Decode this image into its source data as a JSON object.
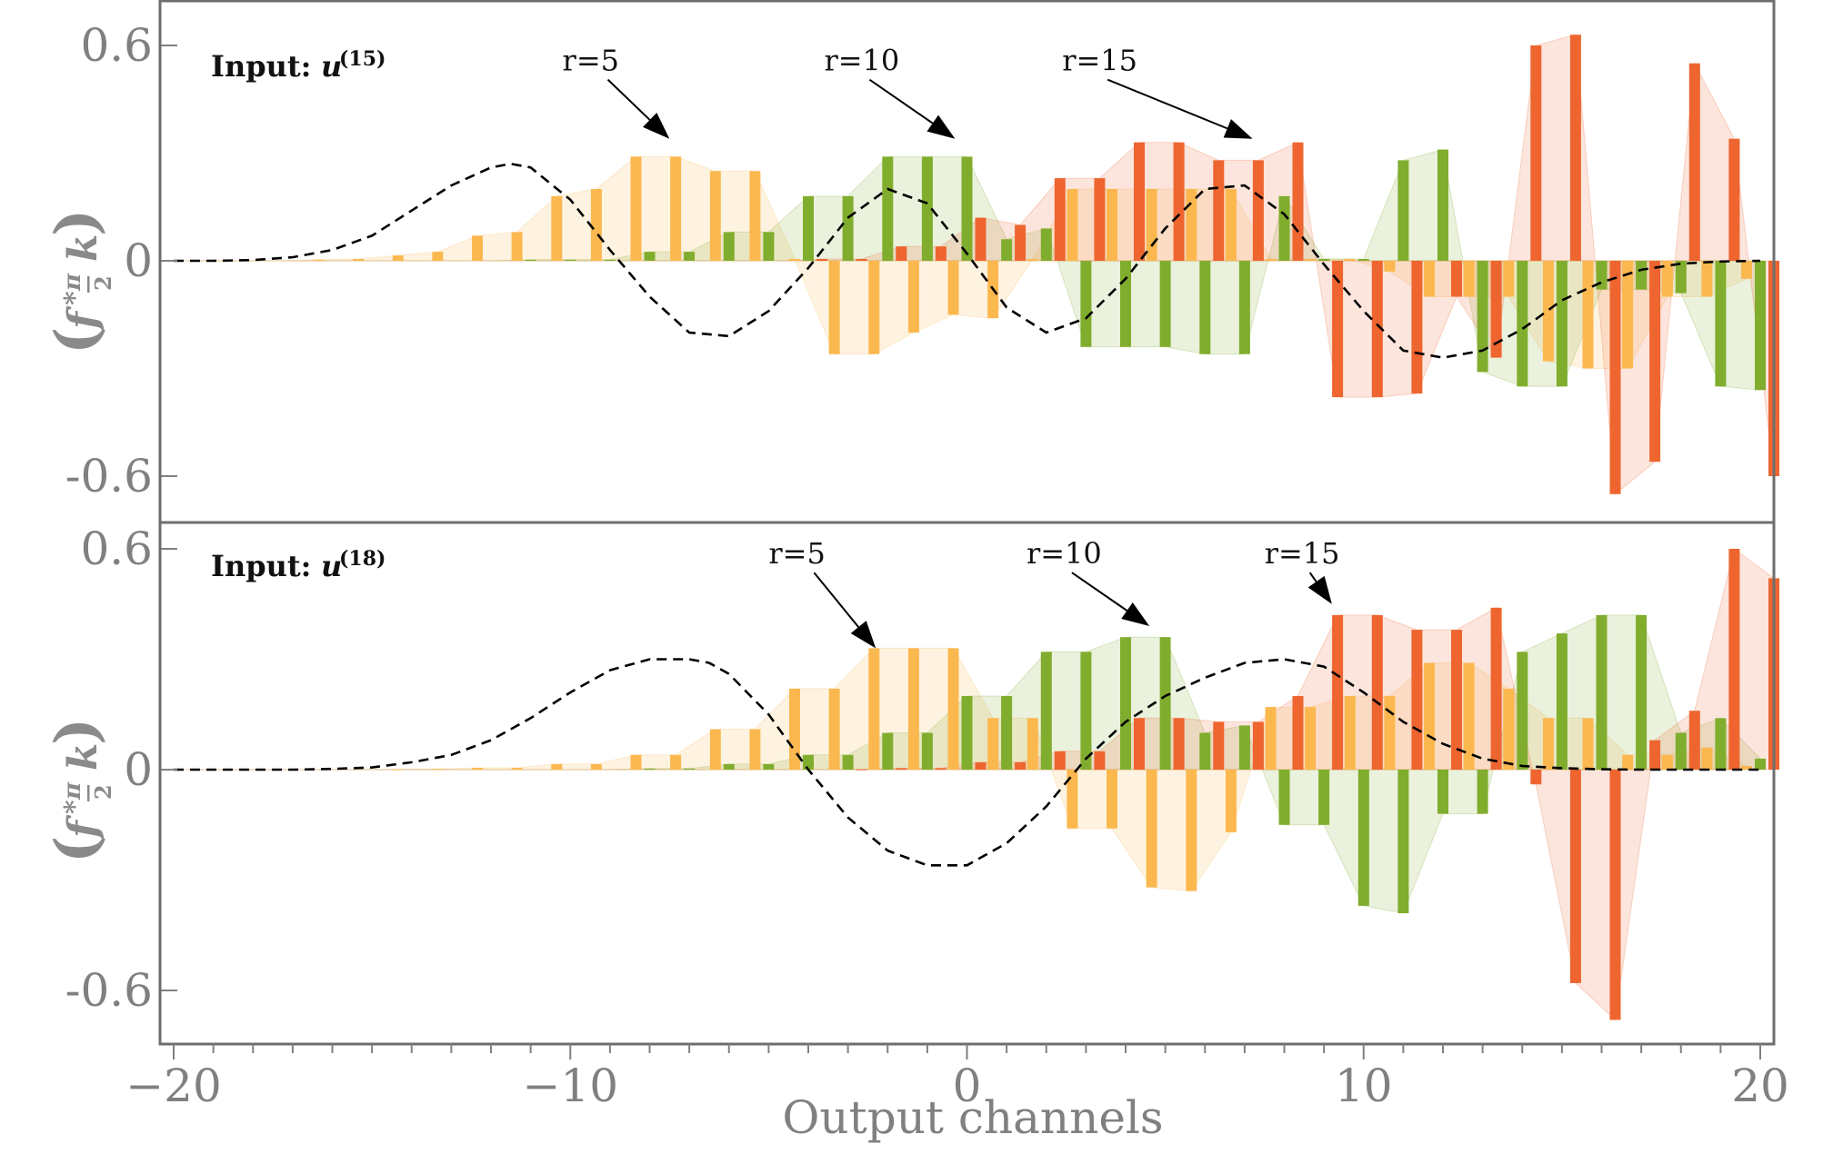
{
  "chart_data": {
    "type": "bar",
    "xlabel": "Output channels",
    "ylabel_parts": {
      "f": "f",
      "conv": "*",
      "pi": "π",
      "num": "",
      "den": "2",
      "k": "k"
    },
    "xlim": [
      -20.5,
      20.5
    ],
    "ylim": [
      -0.72,
      0.72
    ],
    "xticks": [
      -20,
      -10,
      0,
      10,
      20
    ],
    "xtick_labels": [
      "−20",
      "−10",
      "0",
      "10",
      "20"
    ],
    "yticks": [
      0.6,
      0,
      -0.6
    ],
    "ytick_labels": [
      "0.6",
      "0",
      "-0.6"
    ],
    "colors": {
      "r5": "#fbb84f",
      "r10": "#80ad2e",
      "r15": "#ee6530",
      "curve": "#000000",
      "frame": "#6e6e6e",
      "tick": "#808080"
    },
    "panels": [
      {
        "input_label": "Input:",
        "input_var": "u",
        "input_sup": "(15)",
        "annotations": [
          {
            "text": "r=5",
            "series": "r5",
            "arrow_x": -7.5,
            "arrow_y": 0.34
          },
          {
            "text": "r=10",
            "series": "r10",
            "arrow_x": -0.3,
            "arrow_y": 0.34
          },
          {
            "text": "r=15",
            "series": "r15",
            "arrow_x": 7.2,
            "arrow_y": 0.34
          }
        ],
        "series": [
          {
            "name": "r=5",
            "key": "r5",
            "x": [
              -20,
              -19,
              -18,
              -17,
              -16,
              -15,
              -14,
              -13,
              -12,
              -11,
              -10,
              -9,
              -8,
              -7,
              -6,
              -5,
              -4,
              -3,
              -2,
              -1,
              0,
              1,
              2,
              3,
              4,
              5,
              6,
              7,
              8,
              9,
              10,
              11,
              12,
              13,
              14,
              15,
              16,
              17,
              18,
              19,
              20
            ],
            "values": [
              0,
              0,
              0,
              0,
              0.003,
              0.005,
              0.015,
              0.025,
              0.07,
              0.08,
              0.18,
              0.2,
              0.29,
              0.29,
              0.25,
              0.25,
              0.005,
              -0.26,
              -0.26,
              -0.2,
              -0.15,
              -0.16,
              0.005,
              0.2,
              0.2,
              0.2,
              0.2,
              0.2,
              0.005,
              0.005,
              0.005,
              -0.03,
              -0.1,
              -0.1,
              -0.1,
              -0.28,
              -0.3,
              -0.3,
              -0.1,
              -0.1,
              -0.05
            ]
          },
          {
            "name": "r=10",
            "key": "r10",
            "x": [
              -20,
              -19,
              -18,
              -17,
              -16,
              -15,
              -14,
              -13,
              -12,
              -11,
              -10,
              -9,
              -8,
              -7,
              -6,
              -5,
              -4,
              -3,
              -2,
              -1,
              0,
              1,
              2,
              3,
              4,
              5,
              6,
              7,
              8,
              9,
              10,
              11,
              12,
              13,
              14,
              15,
              16,
              17,
              18,
              19,
              20
            ],
            "values": [
              0,
              0,
              0,
              0,
              0,
              0,
              0,
              0,
              0,
              0.003,
              0.003,
              0.003,
              0.025,
              0.025,
              0.08,
              0.08,
              0.18,
              0.18,
              0.29,
              0.29,
              0.29,
              0.06,
              0.09,
              -0.24,
              -0.24,
              -0.24,
              -0.26,
              -0.26,
              0.18,
              0.005,
              0.005,
              0.28,
              0.31,
              -0.31,
              -0.35,
              -0.35,
              -0.08,
              -0.08,
              -0.09,
              -0.35,
              -0.36
            ]
          },
          {
            "name": "r=15",
            "key": "r15",
            "x": [
              -20,
              -19,
              -18,
              -17,
              -16,
              -15,
              -14,
              -13,
              -12,
              -11,
              -10,
              -9,
              -8,
              -7,
              -6,
              -5,
              -4,
              -3,
              -2,
              -1,
              0,
              1,
              2,
              3,
              4,
              5,
              6,
              7,
              8,
              9,
              10,
              11,
              12,
              13,
              14,
              15,
              16,
              17,
              18,
              19,
              20
            ],
            "values": [
              0,
              0,
              0,
              0,
              0,
              0,
              0,
              0,
              0,
              0,
              0,
              0,
              0,
              0,
              0,
              0,
              0.005,
              0.005,
              0.04,
              0.04,
              0.12,
              0.1,
              0.23,
              0.23,
              0.33,
              0.33,
              0.28,
              0.28,
              0.33,
              -0.38,
              -0.38,
              -0.37,
              -0.1,
              -0.27,
              0.6,
              0.63,
              -0.65,
              -0.56,
              0.55,
              0.34,
              -0.6
            ]
          }
        ],
        "curve": {
          "name": "dashed",
          "x": [
            -20,
            -19,
            -18,
            -17,
            -16,
            -15,
            -14,
            -13,
            -12,
            -11.5,
            -11,
            -10,
            -9,
            -8,
            -7,
            -6,
            -5,
            -4,
            -3,
            -2,
            -1,
            0,
            1,
            2,
            3,
            4,
            5,
            6,
            7,
            8,
            9,
            10,
            11,
            12,
            13,
            14,
            15,
            16,
            17,
            18,
            19,
            20
          ],
          "y": [
            0,
            0,
            0.002,
            0.01,
            0.03,
            0.07,
            0.14,
            0.21,
            0.26,
            0.27,
            0.26,
            0.17,
            0.03,
            -0.1,
            -0.2,
            -0.21,
            -0.14,
            -0.02,
            0.12,
            0.2,
            0.16,
            0.02,
            -0.13,
            -0.2,
            -0.16,
            -0.05,
            0.09,
            0.2,
            0.21,
            0.13,
            -0.01,
            -0.14,
            -0.25,
            -0.27,
            -0.25,
            -0.19,
            -0.11,
            -0.06,
            -0.025,
            -0.008,
            -0.002,
            0
          ]
        }
      },
      {
        "input_label": "Input:",
        "input_var": "u",
        "input_sup": "(18)",
        "annotations": [
          {
            "text": "r=5",
            "series": "r5",
            "arrow_x": -2.3,
            "arrow_y": 0.33
          },
          {
            "text": "r=10",
            "series": "r10",
            "arrow_x": 4.6,
            "arrow_y": 0.39
          },
          {
            "text": "r=15",
            "series": "r15",
            "arrow_x": 9.2,
            "arrow_y": 0.45
          }
        ],
        "series": [
          {
            "name": "r=5",
            "key": "r5",
            "x": [
              -20,
              -19,
              -18,
              -17,
              -16,
              -15,
              -14,
              -13,
              -12,
              -11,
              -10,
              -9,
              -8,
              -7,
              -6,
              -5,
              -4,
              -3,
              -2,
              -1,
              0,
              1,
              2,
              3,
              4,
              5,
              6,
              7,
              8,
              9,
              10,
              11,
              12,
              13,
              14,
              15,
              16,
              17,
              18,
              19,
              20
            ],
            "values": [
              0,
              0,
              0,
              0,
              0,
              0,
              0.001,
              0.002,
              0.005,
              0.005,
              0.015,
              0.015,
              0.04,
              0.04,
              0.11,
              0.11,
              0.22,
              0.22,
              0.33,
              0.33,
              0.33,
              0.14,
              0.14,
              -0.16,
              -0.16,
              -0.32,
              -0.33,
              -0.17,
              0.17,
              0.17,
              0.2,
              0.2,
              0.29,
              0.29,
              0.22,
              0.14,
              0.14,
              0.04,
              0.04,
              0.06,
              0.01
            ]
          },
          {
            "name": "r=10",
            "key": "r10",
            "x": [
              -20,
              -19,
              -18,
              -17,
              -16,
              -15,
              -14,
              -13,
              -12,
              -11,
              -10,
              -9,
              -8,
              -7,
              -6,
              -5,
              -4,
              -3,
              -2,
              -1,
              0,
              1,
              2,
              3,
              4,
              5,
              6,
              7,
              8,
              9,
              10,
              11,
              12,
              13,
              14,
              15,
              16,
              17,
              18,
              19,
              20
            ],
            "values": [
              0,
              0,
              0,
              0,
              0,
              0,
              0,
              0,
              0,
              0,
              0,
              0,
              0.003,
              0.003,
              0.015,
              0.015,
              0.04,
              0.04,
              0.1,
              0.1,
              0.2,
              0.2,
              0.32,
              0.32,
              0.36,
              0.36,
              0.1,
              0.12,
              -0.15,
              -0.15,
              -0.37,
              -0.39,
              -0.12,
              -0.12,
              0.32,
              0.37,
              0.42,
              0.42,
              0.1,
              0.14,
              0.03
            ]
          },
          {
            "name": "r=15",
            "key": "r15",
            "x": [
              -20,
              -19,
              -18,
              -17,
              -16,
              -15,
              -14,
              -13,
              -12,
              -11,
              -10,
              -9,
              -8,
              -7,
              -6,
              -5,
              -4,
              -3,
              -2,
              -1,
              0,
              1,
              2,
              3,
              4,
              5,
              6,
              7,
              8,
              9,
              10,
              11,
              12,
              13,
              14,
              15,
              16,
              17,
              18,
              19,
              20
            ],
            "values": [
              0,
              0,
              0,
              0,
              0,
              0,
              0,
              0,
              0,
              0,
              0,
              0,
              0,
              0,
              0,
              0,
              0,
              0.001,
              0.004,
              0.004,
              0.02,
              0.02,
              0.05,
              0.05,
              0.14,
              0.14,
              0.13,
              0.13,
              0.2,
              0.42,
              0.42,
              0.38,
              0.38,
              0.44,
              -0.04,
              -0.58,
              -0.68,
              0.08,
              0.16,
              0.6,
              0.52
            ]
          }
        ],
        "curve": {
          "name": "dashed",
          "x": [
            -20,
            -19,
            -18,
            -17,
            -16,
            -15,
            -14,
            -13,
            -12,
            -11,
            -10,
            -9,
            -8,
            -7,
            -6.5,
            -6,
            -5,
            -4,
            -3,
            -2,
            -1,
            0,
            1,
            2,
            3,
            4,
            5,
            6,
            7,
            8,
            9,
            10,
            11,
            12,
            13,
            14,
            15,
            16,
            17,
            18,
            19,
            20
          ],
          "y": [
            0,
            0,
            0,
            0,
            0.002,
            0.006,
            0.02,
            0.04,
            0.08,
            0.14,
            0.21,
            0.27,
            0.3,
            0.3,
            0.29,
            0.26,
            0.15,
            0.0,
            -0.13,
            -0.22,
            -0.26,
            -0.26,
            -0.2,
            -0.1,
            0.03,
            0.13,
            0.2,
            0.25,
            0.29,
            0.3,
            0.28,
            0.21,
            0.13,
            0.07,
            0.03,
            0.01,
            0.004,
            0.001,
            0,
            0,
            0,
            0
          ]
        }
      }
    ]
  }
}
